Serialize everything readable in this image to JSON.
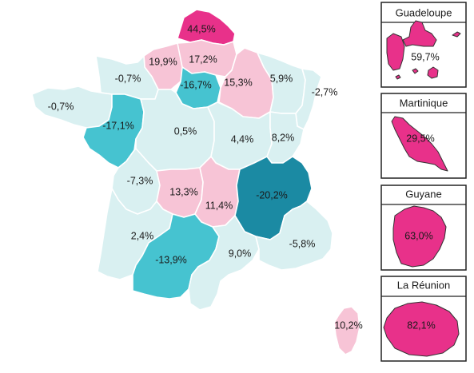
{
  "colors": {
    "light_cyan": "#d9f0f1",
    "medium_cyan": "#46c3d0",
    "dark_teal": "#1b8aa3",
    "light_pink": "#f7c4d6",
    "magenta": "#e8318a",
    "magenta_dark": "#c81f74"
  },
  "regions": [
    {
      "id": "nord-pas-de-calais",
      "label": "44,5%",
      "value": 44.5
    },
    {
      "id": "haute-normandie",
      "label": "19,9%",
      "value": 19.9
    },
    {
      "id": "picardie",
      "label": "17,2%",
      "value": 17.2
    },
    {
      "id": "basse-normandie",
      "label": "-0,7%",
      "value": -0.7
    },
    {
      "id": "ile-de-france",
      "label": "-16,7%",
      "value": -16.7
    },
    {
      "id": "champagne-ardenne",
      "label": "15,3%",
      "value": 15.3
    },
    {
      "id": "lorraine",
      "label": "5,9%",
      "value": 5.9
    },
    {
      "id": "alsace",
      "label": "-2,7%",
      "value": -2.7
    },
    {
      "id": "bretagne",
      "label": "-0,7%",
      "value": -0.7
    },
    {
      "id": "pays-de-la-loire",
      "label": "-17,1%",
      "value": -17.1
    },
    {
      "id": "centre",
      "label": "0,5%",
      "value": 0.5
    },
    {
      "id": "bourgogne",
      "label": "4,4%",
      "value": 4.4
    },
    {
      "id": "franche-comte",
      "label": "8,2%",
      "value": 8.2
    },
    {
      "id": "poitou-charentes",
      "label": "-7,3%",
      "value": -7.3
    },
    {
      "id": "limousin",
      "label": "13,3%",
      "value": 13.3
    },
    {
      "id": "auvergne",
      "label": "11,4%",
      "value": 11.4
    },
    {
      "id": "rhone-alpes",
      "label": "-20,2%",
      "value": -20.2
    },
    {
      "id": "aquitaine",
      "label": "2,4%",
      "value": 2.4
    },
    {
      "id": "midi-pyrenees",
      "label": "-13,9%",
      "value": -13.9
    },
    {
      "id": "languedoc-roussillon",
      "label": "9,0%",
      "value": 9.0
    },
    {
      "id": "paca",
      "label": "-5,8%",
      "value": -5.8
    },
    {
      "id": "corse",
      "label": "10,2%",
      "value": 10.2
    }
  ],
  "insets": [
    {
      "id": "guadeloupe",
      "title": "Guadeloupe",
      "label": "59,7%",
      "value": 59.7
    },
    {
      "id": "martinique",
      "title": "Martinique",
      "label": "29,5%",
      "value": 29.5
    },
    {
      "id": "guyane",
      "title": "Guyane",
      "label": "63,0%",
      "value": 63.0
    },
    {
      "id": "reunion",
      "title": "La Réunion",
      "label": "82,1%",
      "value": 82.1
    }
  ]
}
